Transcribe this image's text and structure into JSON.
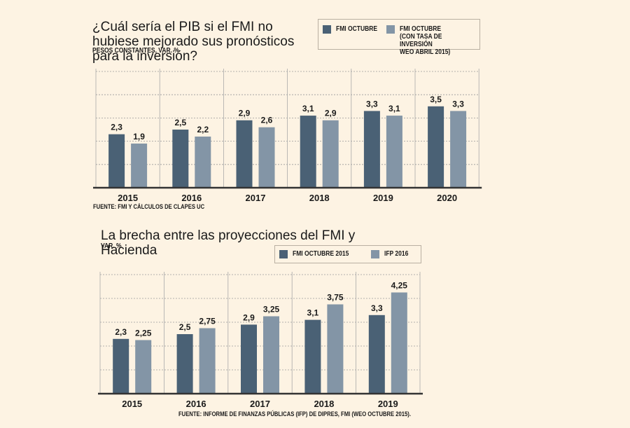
{
  "colors": {
    "dark": "#4a6175",
    "light": "#8395a6",
    "background": "#fdf3e3"
  },
  "chart_data": [
    {
      "type": "bar",
      "title": "¿Cuál sería el PIB si el FMI no hubiese mejorado sus pronósticos para la inversión?",
      "subtitle": "PESOS CONSTANTES, VAR. %",
      "categories": [
        "2015",
        "2016",
        "2017",
        "2018",
        "2019",
        "2020"
      ],
      "series": [
        {
          "name": "FMI OCTUBRE",
          "values": [
            2.3,
            2.5,
            2.9,
            3.1,
            3.3,
            3.5
          ],
          "labels": [
            "2,3",
            "2,5",
            "2,9",
            "3,1",
            "3,3",
            "3,5"
          ]
        },
        {
          "name": "FMI OCTUBRE\n(CON TASA DE INVERSIÓN\nWEO ABRIL 2015)",
          "values": [
            1.9,
            2.2,
            2.6,
            2.9,
            3.1,
            3.3
          ],
          "labels": [
            "1,9",
            "2,2",
            "2,6",
            "2,9",
            "3,1",
            "3,3"
          ]
        }
      ],
      "ylim": [
        0,
        5
      ],
      "source": "FUENTE: FMI Y CÁLCULOS DE CLAPES UC"
    },
    {
      "type": "bar",
      "title": "La brecha entre las proyecciones del FMI y Hacienda",
      "subtitle": "VAR. %",
      "categories": [
        "2015",
        "2016",
        "2017",
        "2018",
        "2019"
      ],
      "series": [
        {
          "name": "FMI OCTUBRE 2015",
          "values": [
            2.3,
            2.5,
            2.9,
            3.1,
            3.3
          ],
          "labels": [
            "2,3",
            "2,5",
            "2,9",
            "3,1",
            "3,3"
          ]
        },
        {
          "name": "IFP 2016",
          "values": [
            2.25,
            2.75,
            3.25,
            3.75,
            4.25
          ],
          "labels": [
            "2,25",
            "2,75",
            "3,25",
            "3,75",
            "4,25"
          ]
        }
      ],
      "ylim": [
        0,
        5
      ],
      "source": "FUENTE: INFORME DE FINANZAS PÚBLICAS (IFP) DE DIPRES, FMI (WEO OCTUBRE 2015)."
    }
  ]
}
